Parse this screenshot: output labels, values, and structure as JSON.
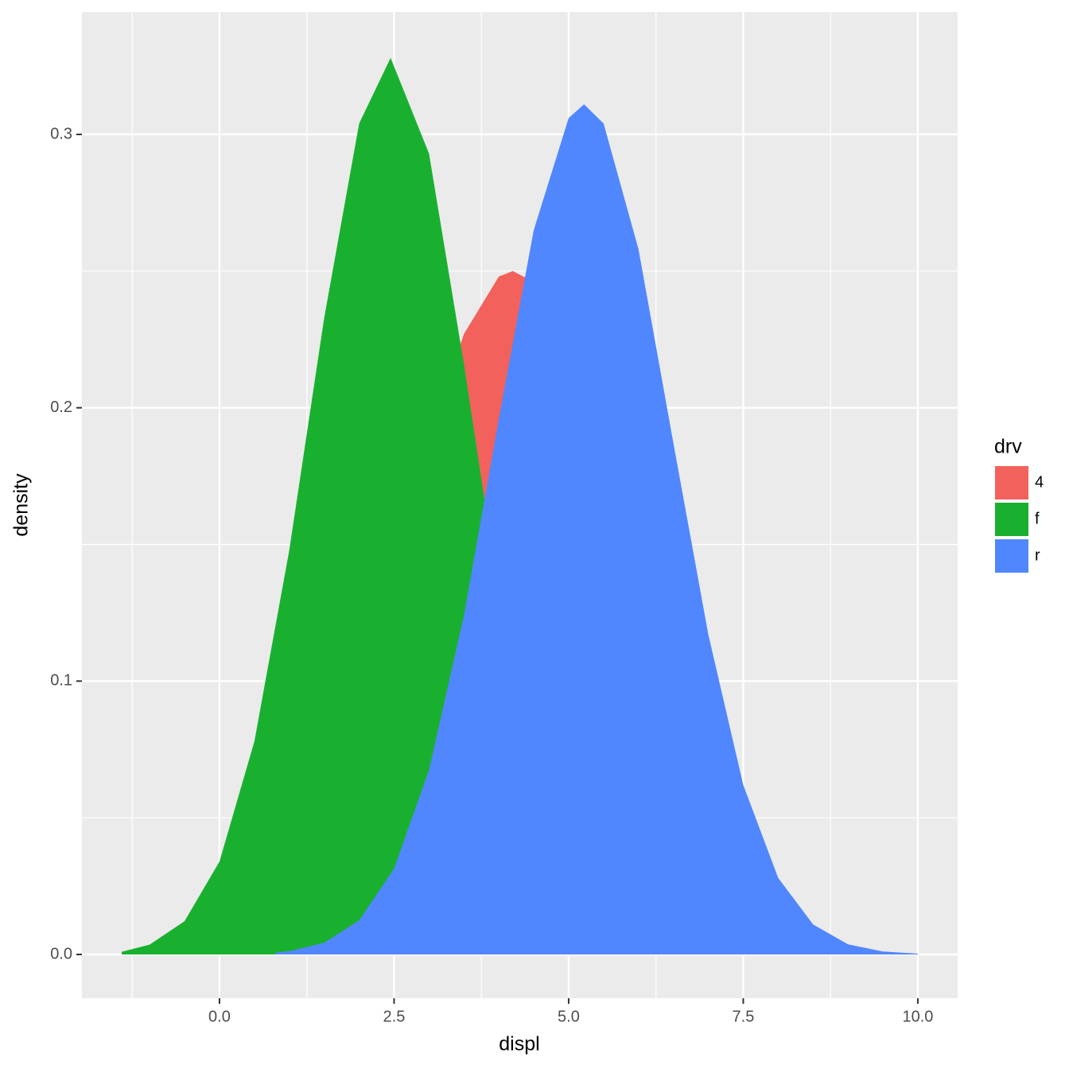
{
  "chart_data": {
    "type": "density",
    "x_label": "displ",
    "y_label": "density",
    "legend_title": "drv",
    "legend_position": "right",
    "xlim": [
      -1.97,
      10.57
    ],
    "ylim": [
      -0.016,
      0.3448
    ],
    "xticks": [
      {
        "value": 0,
        "label": "0.0"
      },
      {
        "value": 2.5,
        "label": "2.5"
      },
      {
        "value": 5,
        "label": "5.0"
      },
      {
        "value": 7.5,
        "label": "7.5"
      },
      {
        "value": 10,
        "label": "10.0"
      }
    ],
    "yticks": [
      {
        "value": 0,
        "label": "0.0"
      },
      0.1,
      0.2,
      0.3
    ],
    "x_minor_ticks": [
      -1.25,
      1.25,
      3.75,
      6.25,
      8.75
    ],
    "y_minor_ticks": [
      0.05,
      0.15,
      0.25
    ],
    "grid": true,
    "series": [
      {
        "name": "4",
        "color": "#F3615C",
        "x": [
          0.5,
          1.0,
          1.5,
          2.0,
          2.5,
          3.0,
          3.5,
          4.0,
          4.2,
          4.5,
          5.0,
          5.5,
          6.0,
          6.5,
          7.0,
          7.5,
          8.0
        ],
        "values": [
          0.017,
          0.034,
          0.06,
          0.097,
          0.142,
          0.189,
          0.227,
          0.248,
          0.25,
          0.246,
          0.221,
          0.18,
          0.133,
          0.089,
          0.054,
          0.03,
          0.015
        ]
      },
      {
        "name": "f",
        "color": "#1AB02F",
        "x": [
          -1.4,
          -1.0,
          -0.5,
          0,
          0.5,
          1.0,
          1.5,
          2.0,
          2.45,
          3.0,
          3.5,
          4.0,
          4.5,
          5.0,
          5.5,
          6.0,
          6.5
        ],
        "values": [
          0.001,
          0.0036,
          0.0122,
          0.034,
          0.078,
          0.148,
          0.233,
          0.304,
          0.328,
          0.293,
          0.216,
          0.132,
          0.067,
          0.028,
          0.0097,
          0.0028,
          0.0007
        ]
      },
      {
        "name": "r",
        "color": "#5087FE",
        "x": [
          0.8,
          1.0,
          1.5,
          2.0,
          2.5,
          3.0,
          3.5,
          4.0,
          4.5,
          5.0,
          5.22,
          5.5,
          6.0,
          6.5,
          7.0,
          7.5,
          8.0,
          8.5,
          9.0,
          9.5,
          10.0
        ],
        "values": [
          0.0007,
          0.0012,
          0.0043,
          0.0125,
          0.0314,
          0.0675,
          0.124,
          0.196,
          0.265,
          0.306,
          0.311,
          0.304,
          0.258,
          0.187,
          0.117,
          0.062,
          0.028,
          0.011,
          0.0037,
          0.0011,
          0.0003
        ]
      }
    ]
  }
}
